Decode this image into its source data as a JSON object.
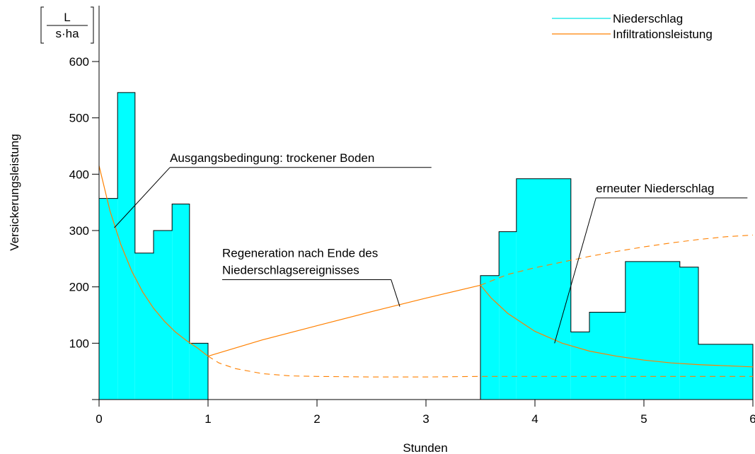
{
  "chart_data": {
    "type": "area",
    "unit": {
      "numerator": "L",
      "denominator": "s·ha"
    },
    "xlabel": "Stunden",
    "ylabel": "Versickerungsleistung",
    "xlim": [
      0,
      6
    ],
    "ylim": [
      0,
      600
    ],
    "xticks": [
      "0",
      "1",
      "2",
      "3",
      "4",
      "5",
      "6"
    ],
    "yticks": [
      "100",
      "200",
      "300",
      "400",
      "500",
      "600"
    ],
    "colors": {
      "precip_fill": "#00ffff",
      "infiltration": "#ff8000"
    },
    "legend": {
      "position": "top-right",
      "entries": [
        {
          "label": "Niederschlag",
          "color": "#00ffff"
        },
        {
          "label": "Infiltrationsleistung",
          "color": "#ff8000"
        }
      ]
    },
    "niederschlag": {
      "name": "Niederschlag",
      "blocks": [
        {
          "x0": 0.0,
          "x1": 0.17,
          "y": 357
        },
        {
          "x0": 0.17,
          "x1": 0.33,
          "y": 545
        },
        {
          "x0": 0.33,
          "x1": 0.5,
          "y": 260
        },
        {
          "x0": 0.5,
          "x1": 0.67,
          "y": 300
        },
        {
          "x0": 0.67,
          "x1": 0.83,
          "y": 347
        },
        {
          "x0": 0.83,
          "x1": 1.0,
          "y": 100
        },
        {
          "x0": 3.5,
          "x1": 3.67,
          "y": 220
        },
        {
          "x0": 3.67,
          "x1": 3.83,
          "y": 298
        },
        {
          "x0": 3.83,
          "x1": 4.33,
          "y": 392
        },
        {
          "x0": 4.33,
          "x1": 4.5,
          "y": 120
        },
        {
          "x0": 4.5,
          "x1": 4.83,
          "y": 155
        },
        {
          "x0": 4.83,
          "x1": 5.33,
          "y": 245
        },
        {
          "x0": 5.33,
          "x1": 5.5,
          "y": 235
        },
        {
          "x0": 5.5,
          "x1": 6.0,
          "y": 98
        }
      ]
    },
    "infiltration": {
      "name": "Infiltrationsleistung",
      "solid_segments": [
        [
          [
            0,
            415
          ],
          [
            0.1,
            335
          ],
          [
            0.2,
            275
          ],
          [
            0.3,
            228
          ],
          [
            0.4,
            191
          ],
          [
            0.5,
            162
          ],
          [
            0.6,
            139
          ],
          [
            0.7,
            120
          ],
          [
            0.8,
            105
          ],
          [
            0.9,
            92
          ],
          [
            1.0,
            77
          ]
        ],
        [
          [
            1.0,
            77
          ],
          [
            1.5,
            106
          ],
          [
            2.0,
            131
          ],
          [
            2.5,
            156
          ],
          [
            3.0,
            180
          ],
          [
            3.5,
            203
          ]
        ],
        [
          [
            3.5,
            203
          ],
          [
            3.6,
            180
          ],
          [
            3.75,
            153
          ],
          [
            4.0,
            121
          ],
          [
            4.25,
            100
          ],
          [
            4.5,
            86
          ],
          [
            4.75,
            77
          ],
          [
            5.0,
            70
          ],
          [
            5.25,
            65
          ],
          [
            5.5,
            62
          ],
          [
            5.75,
            60
          ],
          [
            6.0,
            58
          ]
        ]
      ],
      "dashed_segments": [
        [
          [
            1.0,
            77
          ],
          [
            1.1,
            65
          ],
          [
            1.25,
            55
          ],
          [
            1.5,
            46
          ],
          [
            1.75,
            42
          ],
          [
            2.0,
            41
          ],
          [
            2.5,
            40
          ],
          [
            3.0,
            40
          ],
          [
            3.5,
            41
          ],
          [
            4.0,
            41
          ],
          [
            5.0,
            41
          ],
          [
            6.0,
            41
          ]
        ],
        [
          [
            3.5,
            203
          ],
          [
            3.75,
            222
          ],
          [
            4.0,
            234
          ],
          [
            4.25,
            244
          ],
          [
            4.5,
            254
          ],
          [
            4.75,
            263
          ],
          [
            5.0,
            271
          ],
          [
            5.25,
            278
          ],
          [
            5.5,
            284
          ],
          [
            5.75,
            289
          ],
          [
            6.0,
            292
          ]
        ]
      ]
    },
    "annotations": [
      {
        "text": "Ausgangsbedingung: trockener Boden",
        "x": 0.65,
        "y": 422,
        "anchor": "start",
        "underline_to_x": 3.05,
        "target": [
          0.14,
          305
        ]
      },
      {
        "lines": [
          "Regeneration nach Ende des",
          "Niederschlagsereignisses"
        ],
        "x": 1.13,
        "y": 253,
        "anchor": "start",
        "underline_to_x": 2.68,
        "target": [
          2.76,
          165
        ]
      },
      {
        "text": "erneuter Niederschlag",
        "x": 4.56,
        "y": 368,
        "anchor": "start",
        "underline_to_x": 5.95,
        "target": [
          4.18,
          100
        ]
      }
    ]
  }
}
